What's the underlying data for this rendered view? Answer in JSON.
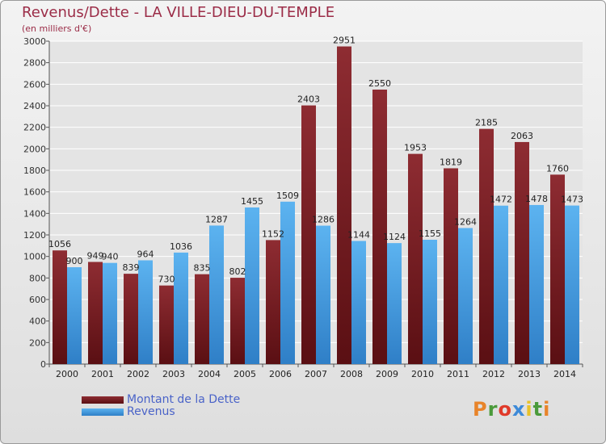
{
  "title": "Revenus/Dette - LA VILLE-DIEU-DU-TEMPLE",
  "subtitle": "(en milliers d'€)",
  "logo": "Proxiti",
  "colors": {
    "dette": "#6e1a1f",
    "revenus": "#3d93d8",
    "title": "#9b2c47"
  },
  "legend": [
    {
      "label": "Montant de la Dette"
    },
    {
      "label": "Revenus"
    }
  ],
  "chart_data": {
    "type": "bar",
    "categories": [
      "2000",
      "2001",
      "2002",
      "2003",
      "2004",
      "2005",
      "2006",
      "2007",
      "2008",
      "2009",
      "2010",
      "2011",
      "2012",
      "2013",
      "2014"
    ],
    "series": [
      {
        "name": "Montant de la Dette",
        "values": [
          1056,
          949,
          839,
          730,
          835,
          802,
          1152,
          2403,
          2951,
          2550,
          1953,
          1819,
          2185,
          2063,
          1760
        ]
      },
      {
        "name": "Revenus",
        "values": [
          900,
          940,
          964,
          1036,
          1287,
          1455,
          1509,
          1286,
          1144,
          1124,
          1155,
          1264,
          1472,
          1478,
          1473
        ]
      }
    ],
    "yticks": [
      0,
      200,
      400,
      600,
      800,
      1000,
      1200,
      1400,
      1600,
      1800,
      2000,
      2200,
      2400,
      2600,
      2800,
      3000
    ],
    "ylim": [
      0,
      3000
    ],
    "grid": true,
    "legend_position": "bottom-left"
  }
}
